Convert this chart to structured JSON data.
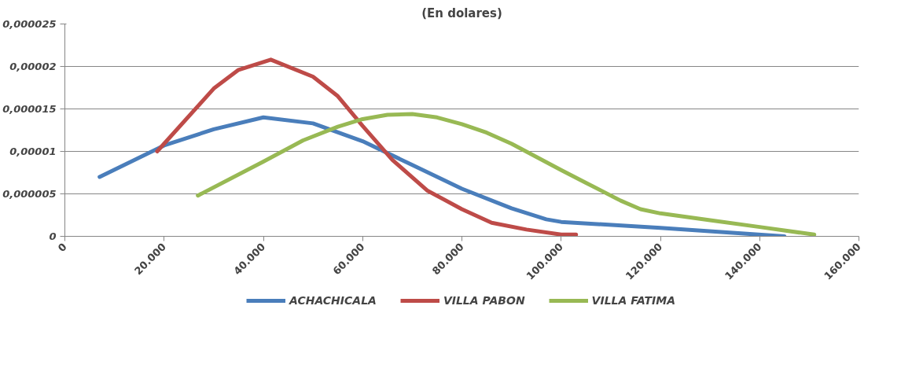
{
  "chart_data": {
    "type": "line",
    "title": "(En dolares)",
    "xlim": [
      0,
      160000
    ],
    "xticks": [
      {
        "value": 0,
        "label": "0"
      },
      {
        "value": 20000,
        "label": "20.000"
      },
      {
        "value": 40000,
        "label": "40.000"
      },
      {
        "value": 60000,
        "label": "60.000"
      },
      {
        "value": 80000,
        "label": "80.000"
      },
      {
        "value": 100000,
        "label": "100.000"
      },
      {
        "value": 120000,
        "label": "120.000"
      },
      {
        "value": 140000,
        "label": "140.000"
      },
      {
        "value": 160000,
        "label": "160.000"
      }
    ],
    "ylim": [
      0,
      2.5e-05
    ],
    "yticks": [
      {
        "value": 0,
        "label": "0"
      },
      {
        "value": 5e-06,
        "label": "0,000005"
      },
      {
        "value": 1e-05,
        "label": "0,00001"
      },
      {
        "value": 1.5e-05,
        "label": "0,000015"
      },
      {
        "value": 2e-05,
        "label": "0,00002"
      },
      {
        "value": 2.5e-05,
        "label": "0,000025"
      }
    ],
    "grid": "y",
    "legend": "bottom",
    "marker": "none",
    "line_style": "solid",
    "series": [
      {
        "name": "ACHACHICALA",
        "color": "#4a7ebb",
        "x": [
          7000,
          20000,
          30000,
          40000,
          50000,
          60000,
          70000,
          80000,
          90000,
          97000,
          100000,
          120000,
          145000
        ],
        "values": [
          7e-06,
          1.07e-05,
          1.26e-05,
          1.4e-05,
          1.33e-05,
          1.12e-05,
          8.4e-06,
          5.6e-06,
          3.3e-06,
          2e-06,
          1.7e-06,
          1e-06,
          0
        ]
      },
      {
        "name": "VILLA PABON",
        "color": "#be4b48",
        "x": [
          18600,
          30000,
          35000,
          41500,
          50000,
          55000,
          60000,
          66000,
          73000,
          80000,
          86000,
          93000,
          100000,
          103000
        ],
        "values": [
          1e-05,
          1.74e-05,
          1.96e-05,
          2.08e-05,
          1.88e-05,
          1.65e-05,
          1.3e-05,
          9e-06,
          5.4e-06,
          3.2e-06,
          1.6e-06,
          8e-07,
          2e-07,
          2e-07
        ]
      },
      {
        "name": "VILLA FATIMA",
        "color": "#98b954",
        "x": [
          26800,
          40000,
          48000,
          55000,
          60000,
          65000,
          70000,
          75000,
          80000,
          85000,
          90000,
          100000,
          105000,
          112000,
          116000,
          120000,
          130000,
          140000,
          151000
        ],
        "values": [
          4.8e-06,
          8.8e-06,
          1.13e-05,
          1.29e-05,
          1.38e-05,
          1.43e-05,
          1.44e-05,
          1.4e-05,
          1.32e-05,
          1.22e-05,
          1.09e-05,
          7.8e-06,
          6.3e-06,
          4.2e-06,
          3.2e-06,
          2.7e-06,
          1.9e-06,
          1.1e-06,
          2e-07
        ]
      }
    ]
  }
}
